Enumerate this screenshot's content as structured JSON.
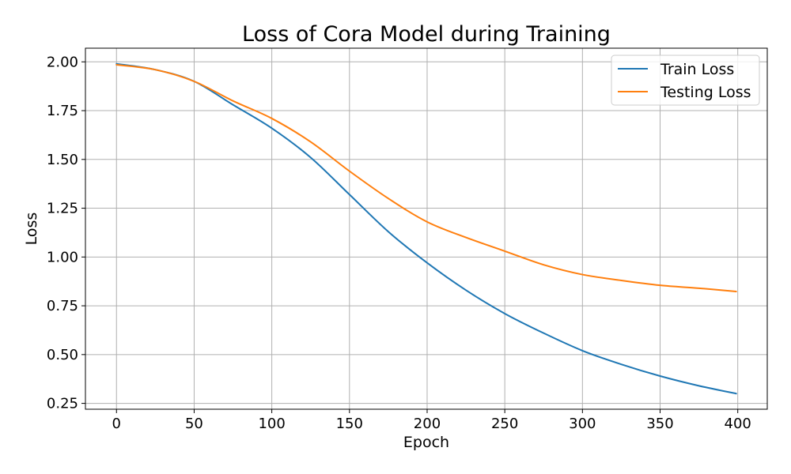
{
  "chart_data": {
    "type": "line",
    "title": "Loss of Cora Model during Training",
    "xlabel": "Epoch",
    "ylabel": "Loss",
    "xlim": [
      -20,
      419
    ],
    "ylim": [
      0.22,
      2.07
    ],
    "xticks": [
      0,
      50,
      100,
      150,
      200,
      250,
      300,
      350,
      400
    ],
    "yticks": [
      0.25,
      0.5,
      0.75,
      1.0,
      1.25,
      1.5,
      1.75,
      2.0
    ],
    "ytick_labels": [
      "0.25",
      "0.50",
      "0.75",
      "1.00",
      "1.25",
      "1.50",
      "1.75",
      "2.00"
    ],
    "grid": true,
    "legend_position": "top-right",
    "series": [
      {
        "name": "Train Loss",
        "color": "#1f77b4",
        "x": [
          0,
          25,
          50,
          75,
          100,
          125,
          150,
          175,
          200,
          225,
          250,
          275,
          300,
          325,
          350,
          375,
          399
        ],
        "values": [
          1.99,
          1.96,
          1.9,
          1.78,
          1.66,
          1.51,
          1.32,
          1.13,
          0.97,
          0.83,
          0.71,
          0.61,
          0.52,
          0.45,
          0.39,
          0.34,
          0.3
        ]
      },
      {
        "name": "Testing Loss",
        "color": "#ff7f0e",
        "x": [
          0,
          25,
          50,
          75,
          100,
          125,
          150,
          175,
          200,
          225,
          250,
          275,
          300,
          325,
          350,
          375,
          399
        ],
        "values": [
          1.985,
          1.96,
          1.9,
          1.8,
          1.71,
          1.59,
          1.44,
          1.3,
          1.18,
          1.1,
          1.03,
          0.96,
          0.91,
          0.88,
          0.855,
          0.84,
          0.823
        ]
      }
    ]
  }
}
